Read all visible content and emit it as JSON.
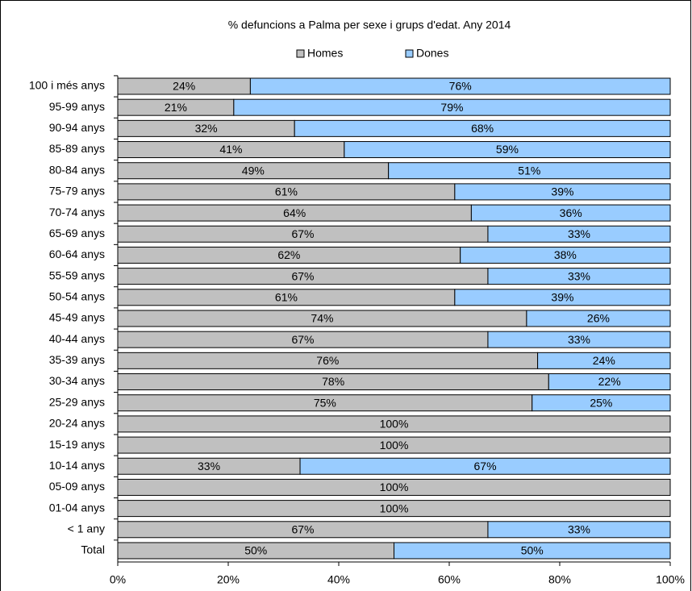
{
  "chart_data": {
    "type": "stacked-bar-horizontal",
    "title": "% defuncions a Palma per sexe i grups d'edat. Any 2014",
    "categories": [
      "100 i més anys",
      "95-99 anys",
      "90-94 anys",
      "85-89 anys",
      "80-84 anys",
      "75-79 anys",
      "70-74 anys",
      "65-69 anys",
      "60-64 anys",
      "55-59 anys",
      "50-54 anys",
      "45-49 anys",
      "40-44 anys",
      "35-39 anys",
      "30-34 anys",
      "25-29 anys",
      "20-24 anys",
      "15-19 anys",
      "10-14 anys",
      "05-09 anys",
      "01-04 anys",
      "< 1 any",
      "Total"
    ],
    "series": [
      {
        "name": "Homes",
        "color": "#c0c0c0",
        "values": [
          24,
          21,
          32,
          41,
          49,
          61,
          64,
          67,
          62,
          67,
          61,
          74,
          67,
          76,
          78,
          75,
          100,
          100,
          33,
          100,
          100,
          67,
          50
        ],
        "value_labels": [
          "24%",
          "21%",
          "32%",
          "41%",
          "49%",
          "61%",
          "64%",
          "67%",
          "62%",
          "67%",
          "61%",
          "74%",
          "67%",
          "76%",
          "78%",
          "75%",
          "100%",
          "100%",
          "33%",
          "100%",
          "100%",
          "67%",
          "50%"
        ]
      },
      {
        "name": "Dones",
        "color": "#99ccff",
        "values": [
          76,
          79,
          68,
          59,
          51,
          39,
          36,
          33,
          38,
          33,
          39,
          26,
          33,
          24,
          22,
          25,
          0,
          0,
          67,
          0,
          0,
          33,
          50
        ],
        "value_labels": [
          "76%",
          "79%",
          "68%",
          "59%",
          "51%",
          "39%",
          "36%",
          "33%",
          "38%",
          "33%",
          "39%",
          "26%",
          "33%",
          "24%",
          "22%",
          "25%",
          null,
          null,
          "67%",
          null,
          null,
          "33%",
          "50%"
        ]
      }
    ],
    "xlim": [
      0,
      100
    ],
    "xticks": [
      {
        "value": 0,
        "label": "0%"
      },
      {
        "value": 20,
        "label": "20%"
      },
      {
        "value": 40,
        "label": "40%"
      },
      {
        "value": 60,
        "label": "60%"
      },
      {
        "value": 80,
        "label": "80%"
      },
      {
        "value": 100,
        "label": "100%"
      }
    ],
    "legend": "top"
  }
}
